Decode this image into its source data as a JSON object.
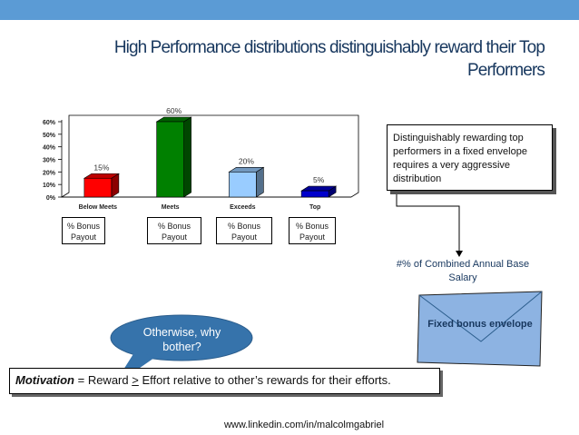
{
  "slide": {
    "title_line1": "High Performance distributions distinguishably reward their Top",
    "title_line2": "Performers",
    "callout": "Distinguishably rewarding top performers in a fixed envelope requires a very aggressive distribution",
    "pct_base": "#% of Combined Annual Base Salary",
    "speech_bubble": "Otherwise, why bother?",
    "envelope_label": "Fixed bonus envelope",
    "motivation": {
      "term": "Motivation",
      "eq": " = Reward ",
      "ge": ">",
      "rest": " Effort relative to other’s rewards for their efforts."
    },
    "footer": "www.linkedin.com/in/malcolmgabriel",
    "payout_labels": [
      "% Bonus Payout",
      "% Bonus Payout",
      "% Bonus Payout",
      "% Bonus Payout"
    ]
  },
  "chart_data": {
    "type": "bar",
    "categories": [
      "Below Meets",
      "Meets",
      "Exceeds",
      "Top"
    ],
    "values": [
      15,
      60,
      20,
      5
    ],
    "data_labels": [
      "15%",
      "60%",
      "20%",
      "5%"
    ],
    "ylim": [
      0,
      60
    ],
    "yticks": [
      0,
      10,
      20,
      30,
      40,
      50,
      60
    ],
    "ytick_labels": [
      "0%",
      "10%",
      "20%",
      "30%",
      "40%",
      "50%",
      "60%"
    ],
    "colors": [
      "#ff0000",
      "#008000",
      "#99ccff",
      "#0000cc"
    ],
    "grid": false
  },
  "colors": {
    "topbar": "#5b9bd5",
    "title": "#17375e",
    "bubble": "#3673ab",
    "envelope": "#8db3e2"
  }
}
